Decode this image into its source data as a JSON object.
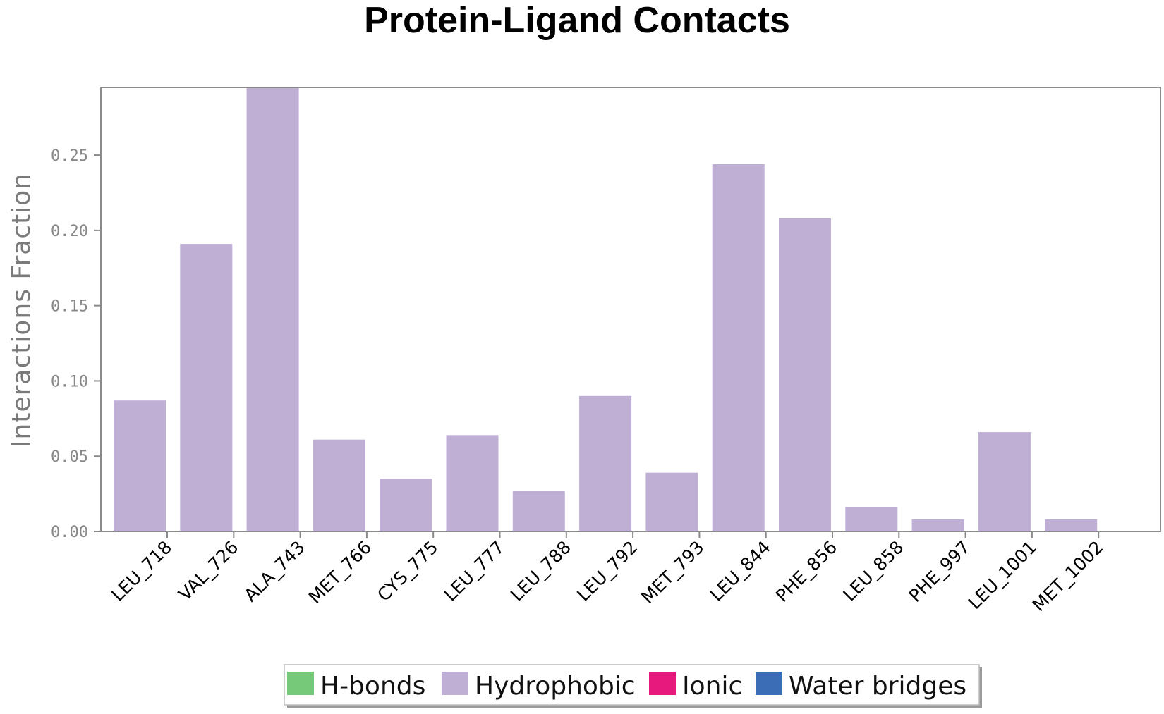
{
  "chart_data": {
    "type": "bar",
    "title": "Protein-Ligand Contacts",
    "xlabel": "",
    "ylabel": "Interactions Fraction",
    "ylim": [
      0,
      0.295
    ],
    "yticks": [
      0.0,
      0.05,
      0.1,
      0.15,
      0.2,
      0.25
    ],
    "ytick_labels": [
      "0.00",
      "0.05",
      "0.10",
      "0.15",
      "0.20",
      "0.25"
    ],
    "categories": [
      "LEU_718",
      "VAL_726",
      "ALA_743",
      "MET_766",
      "CYS_775",
      "LEU_777",
      "LEU_788",
      "LEU_792",
      "MET_793",
      "LEU_844",
      "PHE_856",
      "LEU_858",
      "PHE_997",
      "LEU_1001",
      "MET_1002"
    ],
    "series": [
      {
        "name": "H-bonds",
        "color": "#77c97a",
        "values": [
          0,
          0,
          0,
          0,
          0,
          0,
          0,
          0,
          0,
          0,
          0,
          0,
          0,
          0,
          0
        ]
      },
      {
        "name": "Hydrophobic",
        "color": "#bfafd5",
        "values": [
          0.087,
          0.191,
          0.296,
          0.061,
          0.035,
          0.064,
          0.027,
          0.09,
          0.039,
          0.244,
          0.208,
          0.016,
          0.008,
          0.066,
          0.008
        ]
      },
      {
        "name": "Ionic",
        "color": "#e8197c",
        "values": [
          0,
          0,
          0,
          0,
          0,
          0,
          0,
          0,
          0,
          0,
          0,
          0,
          0,
          0,
          0
        ]
      },
      {
        "name": "Water bridges",
        "color": "#3a6db5",
        "values": [
          0,
          0,
          0,
          0,
          0,
          0,
          0,
          0,
          0,
          0,
          0,
          0,
          0,
          0,
          0
        ]
      }
    ],
    "grid": false,
    "legend_position": "bottom-center"
  }
}
